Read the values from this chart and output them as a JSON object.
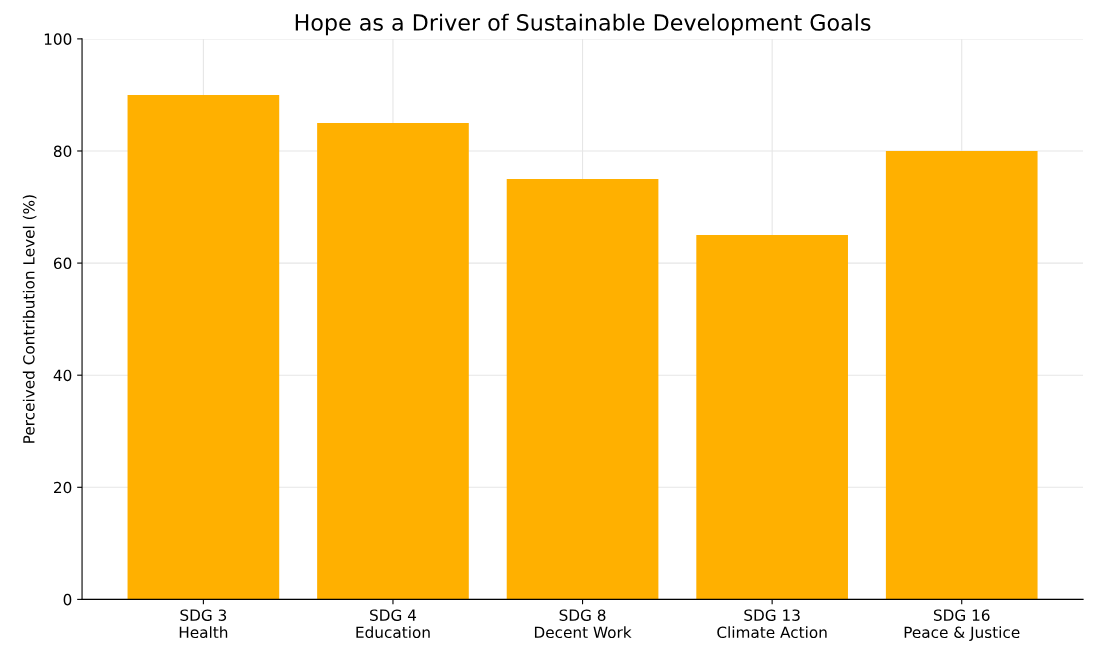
{
  "chart_data": {
    "type": "bar",
    "title": "Hope as a Driver of Sustainable Development Goals",
    "ylabel": "Perceived Contribution Level (%)",
    "categories": [
      "SDG 3\nHealth",
      "SDG 4\nEducation",
      "SDG 8\nDecent Work",
      "SDG 13\nClimate Action",
      "SDG 16\nPeace & Justice"
    ],
    "values": [
      90,
      85,
      75,
      65,
      80
    ],
    "color": "#ffb000",
    "ylim": [
      0,
      100
    ],
    "yticks": [
      0,
      20,
      40,
      60,
      80,
      100
    ],
    "grid": true
  }
}
